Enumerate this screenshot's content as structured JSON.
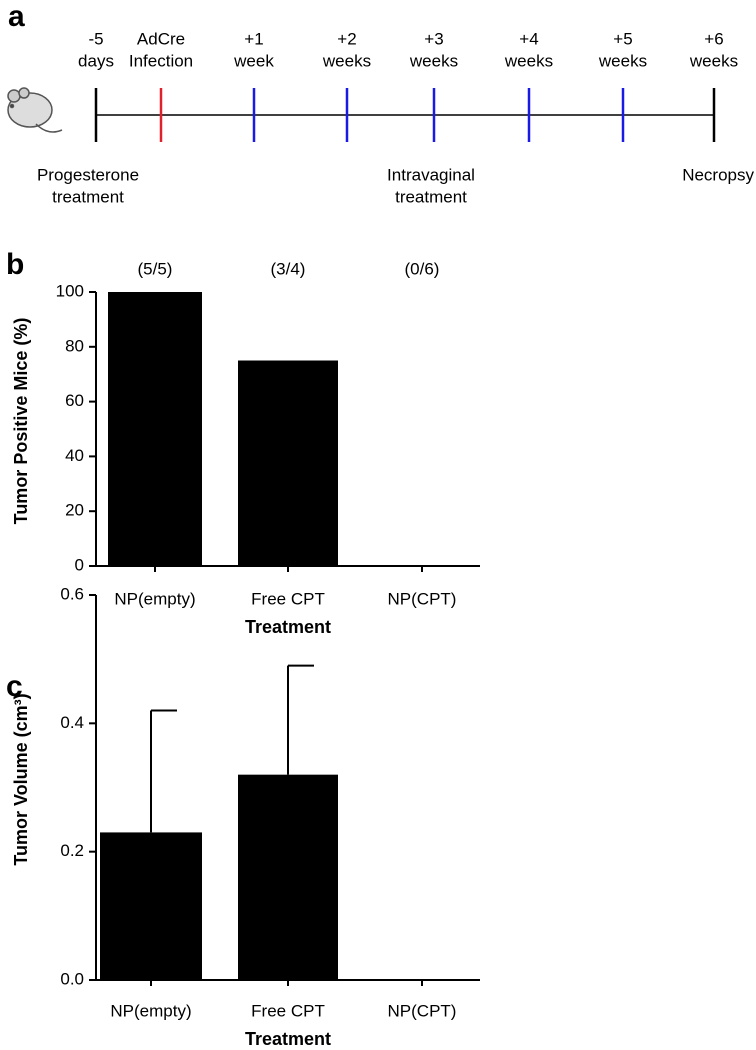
{
  "panels": [
    "a",
    "b",
    "c"
  ],
  "timeline": {
    "points": [
      {
        "label": [
          "-5",
          "days"
        ],
        "color": "#000000"
      },
      {
        "label": [
          "AdCre",
          "Infection"
        ],
        "color": "#e0202a"
      },
      {
        "label": [
          "+1",
          "week"
        ],
        "color": "#1a1ae6"
      },
      {
        "label": [
          "+2",
          "weeks"
        ],
        "color": "#1a1ae6"
      },
      {
        "label": [
          "+3",
          "weeks"
        ],
        "color": "#1a1ae6"
      },
      {
        "label": [
          "+4",
          "weeks"
        ],
        "color": "#1a1ae6"
      },
      {
        "label": [
          "+5",
          "weeks"
        ],
        "color": "#1a1ae6"
      },
      {
        "label": [
          "+6",
          "weeks"
        ],
        "color": "#000000"
      }
    ],
    "notes": [
      {
        "lines": [
          "Progesterone",
          "treatment"
        ],
        "color": "#000000"
      },
      {
        "lines": [
          "Intravaginal",
          "treatment"
        ],
        "color": "#1a1ae6"
      },
      {
        "lines": [
          "Necropsy"
        ],
        "color": "#000000"
      }
    ]
  },
  "chart_data": [
    {
      "type": "bar",
      "y_label": "Tumor Positive Mice (%)",
      "x_label": "Treatment",
      "categories": [
        "NP(empty)",
        "Free CPT",
        "NP(CPT)"
      ],
      "values": [
        100,
        75,
        0
      ],
      "annotations": [
        "(5/5)",
        "(3/4)",
        "(0/6)"
      ],
      "color": "#000000",
      "ylim": [
        0,
        100
      ],
      "yticks": [
        0,
        20,
        40,
        60,
        80,
        100
      ]
    },
    {
      "type": "bar",
      "y_label": "Tumor Volume (cm³)",
      "x_label": "Treatment",
      "categories": [
        "NP(empty)",
        "Free CPT",
        "NP(CPT)"
      ],
      "values": [
        0.23,
        0.32,
        0
      ],
      "errors": [
        0.19,
        0.17,
        0
      ],
      "color": "#000000",
      "ylim": [
        0,
        0.6
      ],
      "yticks": [
        {
          "value": 0,
          "label": "0.0"
        },
        0.2,
        0.4,
        0.6
      ]
    }
  ]
}
